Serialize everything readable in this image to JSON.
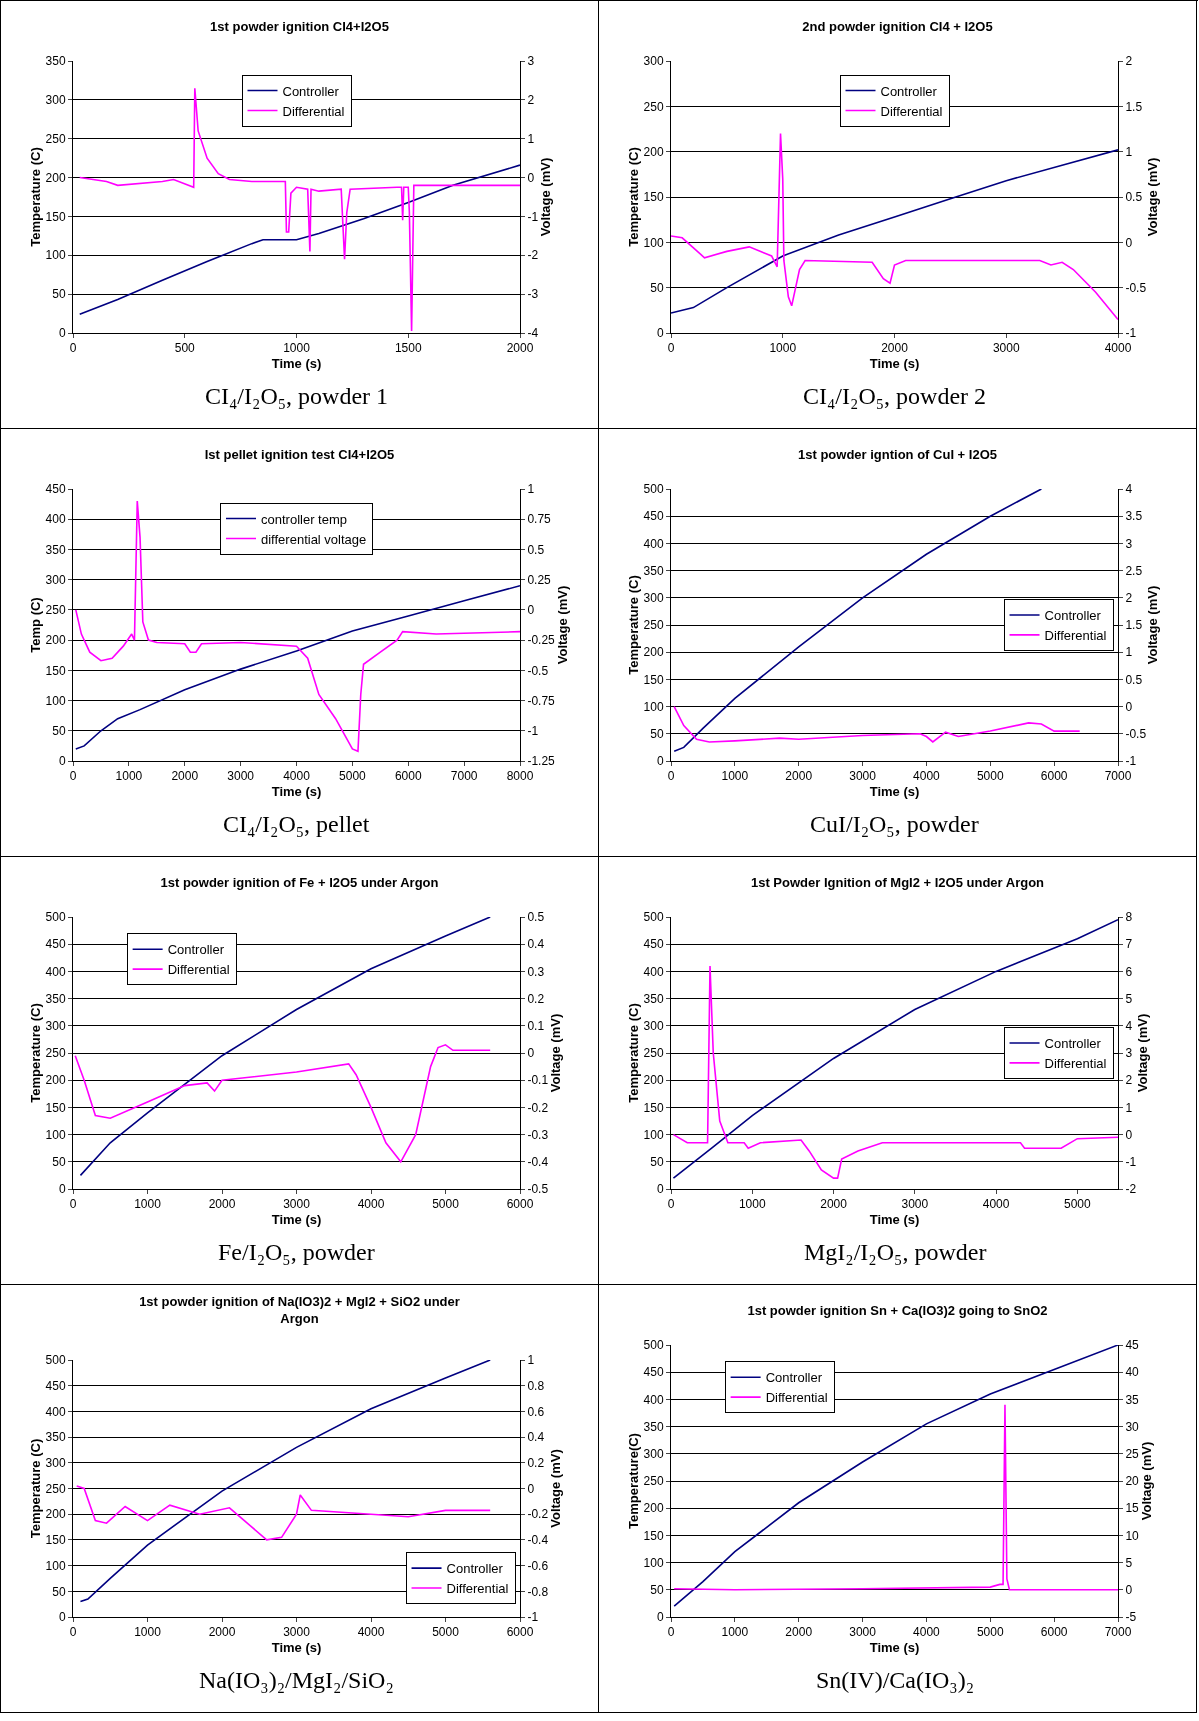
{
  "chart_data": [
    {
      "type": "line",
      "title": "1st powder ignition CI4+I2O5",
      "xlabel": "Time (s)",
      "ylabel": "Temperature (C)",
      "y2label": "Voltage (mV)",
      "xlim": [
        0,
        2000
      ],
      "xticks": [
        0,
        500,
        1000,
        1500,
        2000
      ],
      "ylim": [
        0,
        350
      ],
      "yticks": [
        0,
        50,
        100,
        150,
        200,
        250,
        300,
        350
      ],
      "y2lim": [
        -4,
        3
      ],
      "y2ticks": [
        -4,
        -3,
        -2,
        -1,
        0,
        1,
        2,
        3
      ],
      "grid": "y",
      "legend": "top",
      "annotations": [
        "CI₄/I₂O₅, powder 1"
      ],
      "series": [
        {
          "name": "Controller",
          "color": "#000080",
          "x": [
            30,
            200,
            400,
            600,
            800,
            850,
            1000,
            1100,
            1300,
            1500,
            1700,
            2000
          ],
          "values": [
            24,
            43,
            68,
            92,
            115,
            120,
            120,
            128,
            147,
            168,
            190,
            216
          ]
        },
        {
          "name": "Differential",
          "color": "#ff00ff",
          "axis": "y2",
          "x": [
            30,
            150,
            200,
            400,
            450,
            540,
            545,
            560,
            600,
            650,
            700,
            800,
            950,
            955,
            965,
            975,
            1000,
            1050,
            1060,
            1065,
            1100,
            1200,
            1215,
            1225,
            1240,
            1450,
            1470,
            1475,
            1480,
            1500,
            1505,
            1515,
            1525,
            2000
          ],
          "values": [
            0,
            -0.1,
            -0.2,
            -0.1,
            -0.05,
            -0.25,
            2.3,
            1.2,
            0.5,
            0.1,
            -0.05,
            -0.1,
            -0.1,
            -1.4,
            -1.4,
            -0.4,
            -0.25,
            -0.3,
            -1.9,
            -0.3,
            -0.35,
            -0.3,
            -2.1,
            -0.9,
            -0.3,
            -0.25,
            -0.25,
            -1.1,
            -0.25,
            -0.25,
            -0.9,
            -3.95,
            -0.2,
            -0.2
          ]
        }
      ]
    },
    {
      "type": "line",
      "title": "2nd powder ignition CI4 + I2O5",
      "xlabel": "Time (s)",
      "ylabel": "Temperature (C)",
      "y2label": "Voltage (mV)",
      "xlim": [
        0,
        4000
      ],
      "xticks": [
        0,
        1000,
        2000,
        3000,
        4000
      ],
      "ylim": [
        0,
        300
      ],
      "yticks": [
        0,
        50,
        100,
        150,
        200,
        250,
        300
      ],
      "y2lim": [
        -1,
        2
      ],
      "y2ticks": [
        -1,
        -0.5,
        0,
        0.5,
        1,
        1.5,
        2
      ],
      "grid": "y",
      "legend": "top",
      "annotations": [
        "CI₄/I₂O₅, powder 2"
      ],
      "series": [
        {
          "name": "Controller",
          "color": "#000080",
          "x": [
            0,
            200,
            500,
            1000,
            1500,
            2000,
            2500,
            3000,
            3500,
            4000
          ],
          "values": [
            22,
            28,
            50,
            85,
            108,
            128,
            148,
            168,
            185,
            202
          ]
        },
        {
          "name": "Differential",
          "color": "#ff00ff",
          "axis": "y2",
          "x": [
            0,
            100,
            300,
            500,
            700,
            900,
            950,
            980,
            1000,
            1010,
            1050,
            1080,
            1150,
            1200,
            1800,
            1900,
            1960,
            2000,
            2100,
            3300,
            3400,
            3500,
            3600,
            3800,
            4000
          ],
          "values": [
            0.07,
            0.05,
            -0.17,
            -0.1,
            -0.05,
            -0.15,
            -0.27,
            1.2,
            0.7,
            -0.2,
            -0.6,
            -0.7,
            -0.3,
            -0.2,
            -0.22,
            -0.4,
            -0.45,
            -0.25,
            -0.2,
            -0.2,
            -0.25,
            -0.22,
            -0.3,
            -0.55,
            -0.85
          ]
        }
      ]
    },
    {
      "type": "line",
      "title": "Ist pellet ignition test CI4+I2O5",
      "xlabel": "Time (s)",
      "ylabel": "Temp (C)",
      "y2label": "Voltage (mV)",
      "xlim": [
        0,
        8000
      ],
      "xticks": [
        0,
        1000,
        2000,
        3000,
        4000,
        5000,
        6000,
        7000,
        8000
      ],
      "ylim": [
        0,
        450
      ],
      "yticks": [
        0,
        50,
        100,
        150,
        200,
        250,
        300,
        350,
        400,
        450
      ],
      "y2lim": [
        -1.25,
        1
      ],
      "y2ticks": [
        -1.25,
        -1,
        -0.75,
        -0.5,
        -0.25,
        0,
        0.25,
        0.5,
        0.75,
        1
      ],
      "grid": "y",
      "legend": "top",
      "annotations": [
        "CI₄/I₂O₅, pellet"
      ],
      "series": [
        {
          "name": "controller temp",
          "color": "#000080",
          "x": [
            50,
            200,
            500,
            800,
            1200,
            2000,
            3000,
            4000,
            5000,
            6000,
            7000,
            8000
          ],
          "values": [
            20,
            25,
            50,
            70,
            85,
            118,
            152,
            182,
            215,
            240,
            265,
            290
          ]
        },
        {
          "name": "differential voltage",
          "color": "#ff00ff",
          "axis": "y2",
          "x": [
            50,
            150,
            300,
            500,
            700,
            900,
            1050,
            1100,
            1150,
            1200,
            1250,
            1350,
            1500,
            2000,
            2100,
            2200,
            2300,
            3000,
            4000,
            4200,
            4400,
            4700,
            5000,
            5100,
            5150,
            5200,
            5500,
            5800,
            5900,
            6500,
            8000
          ],
          "values": [
            0,
            -0.2,
            -0.35,
            -0.42,
            -0.4,
            -0.3,
            -0.2,
            -0.25,
            0.9,
            0.6,
            -0.1,
            -0.25,
            -0.27,
            -0.28,
            -0.35,
            -0.35,
            -0.28,
            -0.27,
            -0.3,
            -0.4,
            -0.7,
            -0.9,
            -1.15,
            -1.17,
            -0.7,
            -0.45,
            -0.35,
            -0.25,
            -0.18,
            -0.2,
            -0.18
          ]
        }
      ]
    },
    {
      "type": "line",
      "title": "1st powder igntion of CuI + I2O5",
      "xlabel": "Time (s)",
      "ylabel": "Temperature (C)",
      "y2label": "Voltage (mV)",
      "xlim": [
        0,
        7000
      ],
      "xticks": [
        0,
        1000,
        2000,
        3000,
        4000,
        5000,
        6000,
        7000
      ],
      "ylim": [
        0,
        500
      ],
      "yticks": [
        0,
        50,
        100,
        150,
        200,
        250,
        300,
        350,
        400,
        450,
        500
      ],
      "y2lim": [
        -1,
        4
      ],
      "y2ticks": [
        -1,
        -0.5,
        0,
        0.5,
        1,
        1.5,
        2,
        2.5,
        3,
        3.5,
        4
      ],
      "grid": "y",
      "legend": "right",
      "annotations": [
        "CuI/I₂O₅, powder"
      ],
      "series": [
        {
          "name": "Controller",
          "color": "#000080",
          "x": [
            50,
            200,
            500,
            1000,
            2000,
            3000,
            4000,
            5000,
            5800
          ],
          "values": [
            18,
            25,
            60,
            115,
            210,
            300,
            380,
            450,
            500
          ]
        },
        {
          "name": "Differential",
          "color": "#ff00ff",
          "axis": "y2",
          "x": [
            50,
            200,
            400,
            600,
            1000,
            1700,
            2000,
            3000,
            3900,
            4000,
            4100,
            4300,
            4500,
            5000,
            5600,
            5800,
            6000,
            6400
          ],
          "values": [
            0,
            -0.35,
            -0.6,
            -0.65,
            -0.63,
            -0.58,
            -0.6,
            -0.53,
            -0.5,
            -0.55,
            -0.65,
            -0.47,
            -0.55,
            -0.45,
            -0.3,
            -0.32,
            -0.45,
            -0.45
          ]
        }
      ]
    },
    {
      "type": "line",
      "title": "1st powder ignition of Fe + I2O5 under Argon",
      "xlabel": "Time (s)",
      "ylabel": "Temperature (C)",
      "y2label": "Voltage (mV)",
      "xlim": [
        0,
        6000
      ],
      "xticks": [
        0,
        1000,
        2000,
        3000,
        4000,
        5000,
        6000
      ],
      "ylim": [
        0,
        500
      ],
      "yticks": [
        0,
        50,
        100,
        150,
        200,
        250,
        300,
        350,
        400,
        450,
        500
      ],
      "y2lim": [
        -0.5,
        0.5
      ],
      "y2ticks": [
        -0.5,
        -0.4,
        -0.3,
        -0.2,
        -0.1,
        0,
        0.1,
        0.2,
        0.3,
        0.4,
        0.5
      ],
      "grid": "y",
      "legend": "top left",
      "annotations": [
        "Fe/I₂O₅, powder"
      ],
      "series": [
        {
          "name": "Controller",
          "color": "#000080",
          "x": [
            100,
            500,
            1000,
            2000,
            3000,
            4000,
            5000,
            5600
          ],
          "values": [
            25,
            85,
            140,
            245,
            330,
            405,
            465,
            500
          ]
        },
        {
          "name": "Differential",
          "color": "#ff00ff",
          "axis": "y2",
          "x": [
            30,
            150,
            300,
            500,
            1000,
            1500,
            1800,
            1900,
            2000,
            3000,
            3700,
            3800,
            4000,
            4200,
            4400,
            4600,
            4800,
            4900,
            5000,
            5100,
            5600
          ],
          "values": [
            -0.01,
            -0.1,
            -0.23,
            -0.24,
            -0.18,
            -0.12,
            -0.11,
            -0.14,
            -0.1,
            -0.07,
            -0.04,
            -0.08,
            -0.2,
            -0.33,
            -0.4,
            -0.3,
            -0.05,
            0.02,
            0.03,
            0.01,
            0.01
          ]
        }
      ]
    },
    {
      "type": "line",
      "title": "1st Powder Ignition of MgI2 + I2O5 under Argon",
      "xlabel": "Time (s)",
      "ylabel": "Temperature (C)",
      "y2label": "Voltage (mV)",
      "xlim": [
        0,
        5500
      ],
      "xticks": [
        0,
        1000,
        2000,
        3000,
        4000,
        5000
      ],
      "ylim": [
        0,
        500
      ],
      "yticks": [
        0,
        50,
        100,
        150,
        200,
        250,
        300,
        350,
        400,
        450,
        500
      ],
      "y2lim": [
        -2,
        8
      ],
      "y2ticks": [
        -2,
        -1,
        0,
        1,
        2,
        3,
        4,
        5,
        6,
        7,
        8
      ],
      "grid": "y",
      "legend": "right",
      "annotations": [
        "MgI₂/I₂O₅, powder"
      ],
      "series": [
        {
          "name": "Controller",
          "color": "#000080",
          "x": [
            30,
            500,
            1000,
            2000,
            3000,
            4000,
            5000,
            5500
          ],
          "values": [
            20,
            75,
            135,
            240,
            330,
            400,
            460,
            495
          ]
        },
        {
          "name": "Differential",
          "color": "#ff00ff",
          "axis": "y2",
          "x": [
            30,
            200,
            450,
            480,
            520,
            600,
            700,
            900,
            950,
            1100,
            1600,
            1700,
            1850,
            2000,
            2050,
            2100,
            2300,
            2600,
            4300,
            4350,
            4800,
            5000,
            5500
          ],
          "values": [
            0,
            -0.3,
            -0.3,
            6.2,
            3,
            0.5,
            -0.3,
            -0.3,
            -0.5,
            -0.3,
            -0.2,
            -0.6,
            -1.3,
            -1.6,
            -1.6,
            -0.9,
            -0.6,
            -0.3,
            -0.3,
            -0.5,
            -0.5,
            -0.15,
            -0.1
          ]
        }
      ]
    },
    {
      "type": "line",
      "title": "1st powder ignition of Na(IO3)2 + MgI2 + SiO2 under Argon",
      "xlabel": "Time (s)",
      "ylabel": "Temperature (C)",
      "y2label": "Voltage (mV)",
      "xlim": [
        0,
        6000
      ],
      "xticks": [
        0,
        1000,
        2000,
        3000,
        4000,
        5000,
        6000
      ],
      "ylim": [
        0,
        500
      ],
      "yticks": [
        0,
        50,
        100,
        150,
        200,
        250,
        300,
        350,
        400,
        450,
        500
      ],
      "y2lim": [
        -1,
        1
      ],
      "y2ticks": [
        -1,
        -0.8,
        -0.6,
        -0.4,
        -0.2,
        0,
        0.2,
        0.4,
        0.6,
        0.8,
        1
      ],
      "grid": "y",
      "legend": "bottom right",
      "annotations": [
        "Na(IO₃)₂/MgI₂/SiO₂"
      ],
      "series": [
        {
          "name": "Controller",
          "color": "#000080",
          "x": [
            100,
            200,
            500,
            1000,
            2000,
            3000,
            4000,
            5000,
            5600
          ],
          "values": [
            30,
            35,
            75,
            140,
            245,
            330,
            405,
            465,
            500
          ]
        },
        {
          "name": "Differential",
          "color": "#ff00ff",
          "axis": "y2",
          "x": [
            50,
            150,
            300,
            450,
            700,
            1000,
            1300,
            1700,
            2100,
            2300,
            2600,
            2800,
            3000,
            3050,
            3200,
            4000,
            4500,
            5000,
            5600
          ],
          "values": [
            0.02,
            0,
            -0.25,
            -0.27,
            -0.14,
            -0.25,
            -0.13,
            -0.2,
            -0.15,
            -0.25,
            -0.4,
            -0.38,
            -0.2,
            -0.05,
            -0.17,
            -0.2,
            -0.22,
            -0.17,
            -0.17
          ]
        }
      ]
    },
    {
      "type": "line",
      "title": "1st powder ignition Sn + Ca(IO3)2 going to SnO2",
      "xlabel": "Time (s)",
      "ylabel": "Temperature(C)",
      "y2label": "Voltage (mV)",
      "xlim": [
        0,
        7000
      ],
      "xticks": [
        0,
        1000,
        2000,
        3000,
        4000,
        5000,
        6000,
        7000
      ],
      "ylim": [
        0,
        500
      ],
      "yticks": [
        0,
        50,
        100,
        150,
        200,
        250,
        300,
        350,
        400,
        450,
        500
      ],
      "y2lim": [
        -5,
        45
      ],
      "y2ticks": [
        -5,
        0,
        5,
        10,
        15,
        20,
        25,
        30,
        35,
        40,
        45
      ],
      "grid": "y",
      "legend": "top left",
      "annotations": [
        "Sn(IV)/Ca(IO₃)₂"
      ],
      "series": [
        {
          "name": "Controller",
          "color": "#000080",
          "x": [
            50,
            500,
            1000,
            2000,
            3000,
            4000,
            5000,
            6000,
            7000
          ],
          "values": [
            20,
            65,
            120,
            210,
            285,
            355,
            410,
            455,
            500
          ]
        },
        {
          "name": "Differential",
          "color": "#ff00ff",
          "axis": "y2",
          "x": [
            50,
            1000,
            3000,
            5000,
            5150,
            5200,
            5230,
            5260,
            5300,
            7000
          ],
          "values": [
            0.2,
            0,
            0.2,
            0.5,
            1,
            1,
            34,
            2,
            0,
            0
          ]
        }
      ]
    }
  ]
}
